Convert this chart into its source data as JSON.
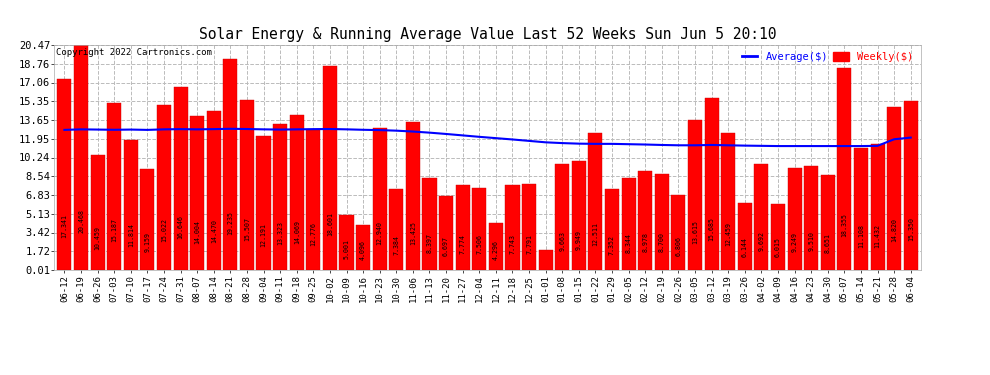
{
  "title": "Solar Energy & Running Average Value Last 52 Weeks Sun Jun 5 20:10",
  "copyright": "Copyright 2022 Cartronics.com",
  "bar_color": "#ff0000",
  "avg_line_color": "#0000ff",
  "background_color": "#ffffff",
  "grid_color": "#aaaaaa",
  "legend_avg_label": "Average($)",
  "legend_weekly_label": "Weekly($)",
  "legend_avg_color": "#0000ff",
  "legend_weekly_color": "#ff0000",
  "yticks": [
    0.01,
    1.72,
    3.42,
    5.13,
    6.83,
    8.54,
    10.24,
    11.95,
    13.65,
    15.35,
    17.06,
    18.76,
    20.47
  ],
  "categories": [
    "06-12",
    "06-19",
    "06-26",
    "07-03",
    "07-10",
    "07-17",
    "07-24",
    "07-31",
    "08-07",
    "08-14",
    "08-21",
    "08-28",
    "09-04",
    "09-11",
    "09-18",
    "09-25",
    "10-02",
    "10-09",
    "10-16",
    "10-23",
    "10-30",
    "11-06",
    "11-13",
    "11-20",
    "11-27",
    "12-04",
    "12-11",
    "12-18",
    "12-25",
    "01-01",
    "01-08",
    "01-15",
    "01-22",
    "01-29",
    "02-05",
    "02-12",
    "02-19",
    "02-26",
    "03-05",
    "03-12",
    "03-19",
    "03-26",
    "04-02",
    "04-09",
    "04-16",
    "04-23",
    "04-30",
    "05-07",
    "05-14",
    "05-21",
    "05-28",
    "06-04"
  ],
  "values": [
    17.341,
    20.468,
    10.459,
    15.187,
    11.814,
    9.159,
    15.022,
    16.646,
    14.004,
    14.47,
    19.235,
    15.507,
    12.191,
    13.323,
    14.069,
    12.776,
    18.601,
    5.001,
    4.096,
    12.94,
    7.384,
    13.425,
    8.397,
    6.697,
    7.774,
    7.506,
    4.296,
    7.743,
    7.791,
    1.873,
    9.663,
    9.949,
    12.511,
    7.352,
    8.344,
    8.978,
    8.7,
    6.806,
    13.615,
    15.685,
    12.459,
    6.144,
    9.692,
    6.015,
    9.249,
    9.51,
    8.651,
    18.355,
    11.108,
    11.432,
    14.82,
    15.35
  ],
  "avg_values": [
    12.75,
    12.8,
    12.78,
    12.76,
    12.78,
    12.75,
    12.8,
    12.82,
    12.8,
    12.82,
    12.85,
    12.83,
    12.8,
    12.78,
    12.8,
    12.82,
    12.83,
    12.8,
    12.76,
    12.73,
    12.68,
    12.6,
    12.5,
    12.38,
    12.25,
    12.12,
    12.0,
    11.88,
    11.75,
    11.62,
    11.55,
    11.5,
    11.48,
    11.48,
    11.45,
    11.42,
    11.38,
    11.35,
    11.35,
    11.38,
    11.35,
    11.32,
    11.3,
    11.28,
    11.28,
    11.28,
    11.28,
    11.28,
    11.28,
    11.3,
    11.9,
    12.05
  ]
}
